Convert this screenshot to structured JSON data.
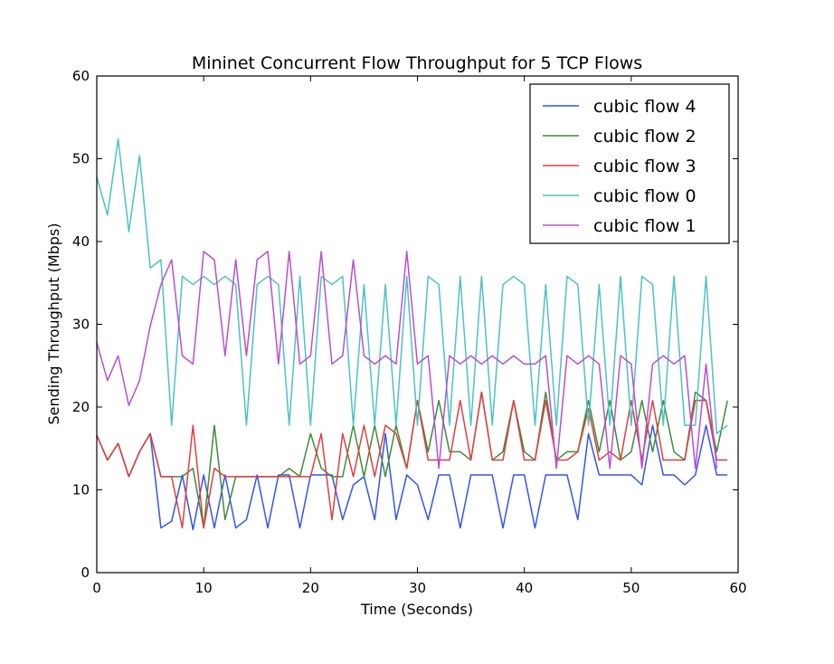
{
  "chart_data": {
    "type": "line",
    "title": "Mininet Concurrent Flow Throughput for 5 TCP Flows",
    "xlabel": "Time (Seconds)",
    "ylabel": "Sending Throughput (Mbps)",
    "xlim": [
      0,
      60
    ],
    "ylim": [
      0,
      60
    ],
    "xticks": [
      0,
      10,
      20,
      30,
      40,
      50,
      60
    ],
    "yticks": [
      0,
      10,
      20,
      30,
      40,
      50,
      60
    ],
    "grid": false,
    "legend_position": "top-right",
    "x": [
      0,
      1,
      2,
      3,
      4,
      5,
      6,
      7,
      8,
      9,
      10,
      11,
      12,
      13,
      14,
      15,
      16,
      17,
      18,
      19,
      20,
      21,
      22,
      23,
      24,
      25,
      26,
      27,
      28,
      29,
      30,
      31,
      32,
      33,
      34,
      35,
      36,
      37,
      38,
      39,
      40,
      41,
      42,
      43,
      44,
      45,
      46,
      47,
      48,
      49,
      50,
      51,
      52,
      53,
      54,
      55,
      56,
      57,
      58,
      59
    ],
    "series": [
      {
        "name": "cubic flow 4",
        "color": "#3254f0",
        "values": [
          16.6,
          13.6,
          15.6,
          11.6,
          14.6,
          16.8,
          5.4,
          6.2,
          11.8,
          5.2,
          11.8,
          5.4,
          11.8,
          5.4,
          6.4,
          11.8,
          5.4,
          11.8,
          11.8,
          5.4,
          11.8,
          11.8,
          11.8,
          6.4,
          10.6,
          11.6,
          6.4,
          16.8,
          6.4,
          11.8,
          10.6,
          6.4,
          11.8,
          11.8,
          5.4,
          11.8,
          11.8,
          11.8,
          5.4,
          11.8,
          11.8,
          5.4,
          11.8,
          11.8,
          11.8,
          6.4,
          16.8,
          11.8,
          11.8,
          11.8,
          11.8,
          10.6,
          17.8,
          11.8,
          11.8,
          10.6,
          11.8,
          17.8,
          11.8,
          11.8
        ]
      },
      {
        "name": "cubic flow 2",
        "color": "#3d8c3a",
        "values": [
          16.6,
          13.6,
          15.6,
          11.6,
          14.6,
          16.8,
          11.6,
          11.6,
          11.6,
          12.6,
          5.4,
          17.8,
          6.4,
          11.6,
          11.6,
          11.6,
          11.6,
          11.6,
          12.6,
          11.6,
          16.8,
          12.6,
          11.6,
          11.6,
          17.8,
          11.6,
          17.8,
          11.6,
          17.8,
          12.6,
          20.8,
          14.6,
          20.8,
          14.6,
          14.6,
          13.6,
          21.8,
          13.6,
          14.6,
          20.8,
          14.6,
          13.6,
          21.8,
          13.6,
          14.6,
          14.6,
          20.8,
          14.6,
          20.8,
          13.6,
          14.6,
          20.8,
          14.6,
          20.8,
          14.6,
          13.6,
          21.8,
          20.8,
          14.6,
          20.8
        ]
      },
      {
        "name": "cubic flow 3",
        "color": "#e03f3f",
        "values": [
          16.6,
          13.6,
          15.6,
          11.6,
          14.6,
          16.8,
          11.6,
          11.6,
          5.4,
          17.8,
          5.4,
          12.6,
          11.6,
          11.6,
          11.6,
          11.6,
          11.6,
          11.6,
          11.6,
          11.6,
          11.6,
          16.8,
          6.4,
          16.8,
          11.6,
          17.8,
          11.6,
          17.8,
          16.8,
          12.6,
          20.8,
          13.6,
          13.6,
          13.6,
          20.8,
          13.6,
          21.8,
          13.6,
          13.6,
          20.8,
          13.6,
          13.6,
          20.8,
          13.6,
          13.6,
          14.6,
          19.8,
          13.6,
          14.6,
          13.6,
          20.8,
          13.6,
          20.8,
          13.6,
          13.6,
          13.6,
          20.8,
          20.8,
          13.6,
          13.6
        ]
      },
      {
        "name": "cubic flow 0",
        "color": "#4cc2c2",
        "values": [
          47.8,
          43.2,
          52.4,
          41.2,
          50.4,
          36.8,
          37.8,
          17.8,
          35.8,
          34.8,
          35.8,
          34.8,
          35.8,
          34.8,
          17.8,
          34.8,
          35.8,
          34.8,
          17.8,
          35.8,
          17.8,
          35.8,
          34.8,
          35.8,
          17.8,
          34.8,
          17.8,
          34.8,
          17.8,
          35.8,
          17.8,
          35.8,
          34.8,
          17.8,
          35.8,
          17.8,
          35.8,
          17.8,
          34.8,
          35.8,
          34.8,
          17.8,
          34.8,
          17.8,
          35.8,
          34.8,
          17.8,
          34.8,
          17.8,
          35.8,
          17.8,
          35.8,
          34.8,
          17.8,
          35.8,
          17.8,
          17.8,
          35.8,
          16.8,
          17.8
        ]
      },
      {
        "name": "cubic flow 1",
        "color": "#b84ed4",
        "values": [
          27.8,
          23.2,
          26.2,
          20.2,
          23.2,
          29.8,
          34.8,
          37.8,
          26.2,
          25.2,
          38.8,
          37.8,
          26.2,
          37.8,
          26.2,
          37.8,
          38.8,
          25.2,
          38.8,
          25.2,
          26.2,
          38.8,
          25.2,
          26.2,
          37.8,
          26.2,
          25.2,
          26.2,
          25.2,
          38.8,
          25.2,
          26.2,
          12.6,
          26.2,
          25.2,
          26.2,
          25.2,
          26.2,
          25.2,
          26.2,
          25.2,
          25.2,
          26.2,
          12.6,
          26.2,
          25.2,
          26.2,
          25.2,
          12.6,
          26.2,
          25.2,
          12.6,
          25.2,
          26.2,
          25.2,
          26.2,
          12.6,
          25.2,
          12.6,
          null
        ]
      }
    ]
  }
}
